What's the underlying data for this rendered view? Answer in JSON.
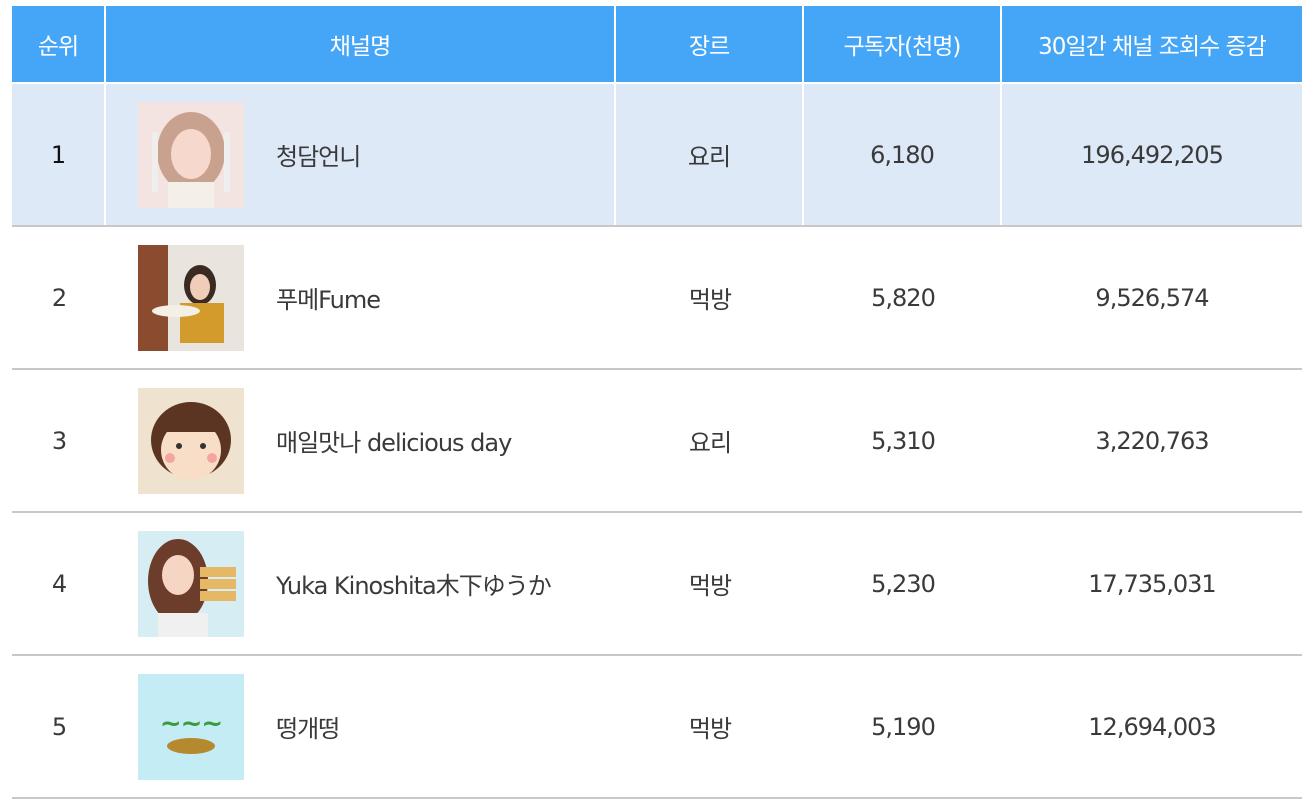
{
  "table": {
    "header": [
      "순위",
      "채널명",
      "장르",
      "구독자(천명)",
      "30일간 채널 조회수 증감"
    ],
    "rows": [
      [
        "1",
        "청담언니",
        "요리",
        "6,180",
        "196,492,205"
      ],
      [
        "2",
        "푸메Fume",
        "먹방",
        "5,820",
        "9,526,574"
      ],
      [
        "3",
        "매일맛나 delicious day",
        "요리",
        "5,310",
        "3,220,763"
      ],
      [
        "4",
        "Yuka Kinoshita木下ゆうか",
        "먹방",
        "5,230",
        "17,735,031"
      ],
      [
        "5",
        "떵개떵",
        "먹방",
        "5,190",
        "12,694,003"
      ]
    ]
  }
}
